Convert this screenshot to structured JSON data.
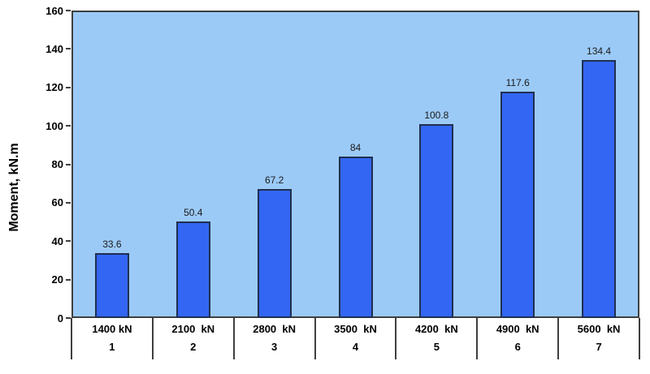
{
  "chart_data": {
    "type": "bar",
    "title": "",
    "ylabel": "Moment, kN.m",
    "xlabel": "",
    "ylim": [
      0,
      160
    ],
    "ytick_step": 20,
    "ytick_labels": [
      "0",
      "20",
      "40",
      "60",
      "80",
      "100",
      "120",
      "140",
      "160"
    ],
    "categories": [
      "1400 kN",
      "2100  kN",
      "2800  kN",
      "3500  kN",
      "4200  kN",
      "4900  kN",
      "5600  kN"
    ],
    "category_numbers": [
      "1",
      "2",
      "3",
      "4",
      "5",
      "6",
      "7"
    ],
    "values": [
      33.6,
      50.4,
      67.2,
      84,
      100.8,
      117.6,
      134.4
    ],
    "value_labels": [
      "33.6",
      "50.4",
      "67.2",
      "84",
      "100.8",
      "117.6",
      "134.4"
    ],
    "grid": "off",
    "legend": "none",
    "colors": {
      "plot_background": "#9ccaf7",
      "bar_fill": "#3366f2",
      "bar_border": "#1f3050",
      "axis_line": "#3f3f3f",
      "text": "#000000"
    }
  }
}
